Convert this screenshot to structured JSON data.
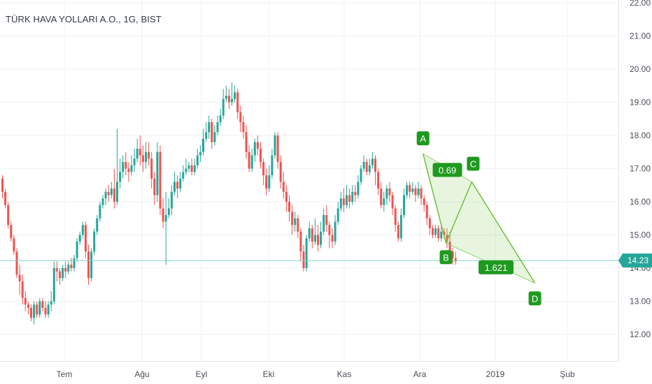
{
  "header": {
    "title": "TÜRK HAVA YOLLARI A.O., 1G, BIST"
  },
  "colors": {
    "up": "#26a69a",
    "down": "#ef5350",
    "grid": "#eef0f3",
    "axis_text": "#4a4f5a",
    "harmonic_line": "#6fbf3a",
    "harmonic_fill": "rgba(120,200,80,0.18)",
    "label_bg": "#1e9a1e",
    "price_line": "#7fd0c8",
    "price_tag": "#26a69a"
  },
  "chart_data": {
    "type": "candlestick",
    "title": "TÜRK HAVA YOLLARI A.O., 1G, BIST",
    "ylim": [
      11.5,
      22.2
    ],
    "y_ticks": [
      "22.00",
      "21.00",
      "20.00",
      "19.00",
      "18.00",
      "17.00",
      "16.00",
      "15.00",
      "14.00",
      "13.00",
      "12.00"
    ],
    "x_ticks": [
      "Tem",
      "Ağu",
      "Eyl",
      "Eki",
      "Kas",
      "Ara",
      "2019",
      "Şub"
    ],
    "last_price": "14.23",
    "candles": [
      [
        16.7,
        16.3,
        16.8,
        16.1
      ],
      [
        16.3,
        15.9,
        16.4,
        15.8
      ],
      [
        15.9,
        15.3,
        16.0,
        15.2
      ],
      [
        15.3,
        14.9,
        15.4,
        14.8
      ],
      [
        14.9,
        14.5,
        15.0,
        14.4
      ],
      [
        14.5,
        13.8,
        14.6,
        13.7
      ],
      [
        13.8,
        13.6,
        14.1,
        13.2
      ],
      [
        13.6,
        13.1,
        13.8,
        12.9
      ],
      [
        13.1,
        12.9,
        13.3,
        12.7
      ],
      [
        12.9,
        12.8,
        13.0,
        12.6
      ],
      [
        12.8,
        12.5,
        12.9,
        12.4
      ],
      [
        12.5,
        12.9,
        13.0,
        12.3
      ],
      [
        12.9,
        12.6,
        13.0,
        12.5
      ],
      [
        12.6,
        13.0,
        13.1,
        12.5
      ],
      [
        13.0,
        12.8,
        13.1,
        12.7
      ],
      [
        12.8,
        12.6,
        13.0,
        12.5
      ],
      [
        12.6,
        12.9,
        13.0,
        12.5
      ],
      [
        12.9,
        13.0,
        13.3,
        12.7
      ],
      [
        13.0,
        14.0,
        14.2,
        12.9
      ],
      [
        14.0,
        13.9,
        14.2,
        13.6
      ],
      [
        13.9,
        13.7,
        14.0,
        13.5
      ],
      [
        13.7,
        14.0,
        14.1,
        13.6
      ],
      [
        14.0,
        13.9,
        14.2,
        13.7
      ],
      [
        13.9,
        14.1,
        14.2,
        13.8
      ],
      [
        14.1,
        14.0,
        14.3,
        13.9
      ],
      [
        14.0,
        14.3,
        14.4,
        13.9
      ],
      [
        14.3,
        14.8,
        14.9,
        14.2
      ],
      [
        14.8,
        15.0,
        15.1,
        14.7
      ],
      [
        15.0,
        15.3,
        15.4,
        14.9
      ],
      [
        15.3,
        14.5,
        15.4,
        14.3
      ],
      [
        14.5,
        13.7,
        14.7,
        13.5
      ],
      [
        13.7,
        14.5,
        14.6,
        13.6
      ],
      [
        14.5,
        15.1,
        15.2,
        14.4
      ],
      [
        15.1,
        15.5,
        15.6,
        15.0
      ],
      [
        15.5,
        15.9,
        16.0,
        15.4
      ],
      [
        15.9,
        16.1,
        16.2,
        15.8
      ],
      [
        16.1,
        16.3,
        16.4,
        15.9
      ],
      [
        16.3,
        16.2,
        16.5,
        16.0
      ],
      [
        16.2,
        16.4,
        16.6,
        16.1
      ],
      [
        16.4,
        16.0,
        17.0,
        15.8
      ],
      [
        16.0,
        16.6,
        18.2,
        15.9
      ],
      [
        16.6,
        16.9,
        17.3,
        16.4
      ],
      [
        16.9,
        17.2,
        17.4,
        16.7
      ],
      [
        17.2,
        17.0,
        17.5,
        16.8
      ],
      [
        17.0,
        16.9,
        17.2,
        16.6
      ],
      [
        16.9,
        17.1,
        17.4,
        16.8
      ],
      [
        17.1,
        17.3,
        17.6,
        16.9
      ],
      [
        17.3,
        17.6,
        17.9,
        17.2
      ],
      [
        17.6,
        17.4,
        18.0,
        17.1
      ],
      [
        17.4,
        17.2,
        17.7,
        16.9
      ],
      [
        17.2,
        17.5,
        17.8,
        17.0
      ],
      [
        17.5,
        17.3,
        17.8,
        17.1
      ],
      [
        17.3,
        16.7,
        17.5,
        16.4
      ],
      [
        16.7,
        16.2,
        16.9,
        15.9
      ],
      [
        16.2,
        17.5,
        17.8,
        16.0
      ],
      [
        17.5,
        15.8,
        17.7,
        15.6
      ],
      [
        15.8,
        15.4,
        16.1,
        15.2
      ],
      [
        15.4,
        15.6,
        16.3,
        14.1
      ],
      [
        15.6,
        15.8,
        16.1,
        15.5
      ],
      [
        15.8,
        16.3,
        16.5,
        15.6
      ],
      [
        16.3,
        16.6,
        16.9,
        16.2
      ],
      [
        16.6,
        16.4,
        16.8,
        16.1
      ],
      [
        16.4,
        16.7,
        16.9,
        16.3
      ],
      [
        16.7,
        16.9,
        17.1,
        16.6
      ],
      [
        16.9,
        17.0,
        17.3,
        16.8
      ],
      [
        17.0,
        17.1,
        17.2,
        16.9
      ],
      [
        17.1,
        16.9,
        17.3,
        16.8
      ],
      [
        16.9,
        17.1,
        17.3,
        16.8
      ],
      [
        17.1,
        17.4,
        17.6,
        17.0
      ],
      [
        17.4,
        17.5,
        17.7,
        17.2
      ],
      [
        17.5,
        17.9,
        18.2,
        17.4
      ],
      [
        17.9,
        18.1,
        18.4,
        17.8
      ],
      [
        18.1,
        18.4,
        18.6,
        17.9
      ],
      [
        18.4,
        17.8,
        18.5,
        17.6
      ],
      [
        17.8,
        18.1,
        18.3,
        17.7
      ],
      [
        18.1,
        18.4,
        18.6,
        18.0
      ],
      [
        18.4,
        18.6,
        18.8,
        18.3
      ],
      [
        18.6,
        19.1,
        19.4,
        18.5
      ],
      [
        19.1,
        19.2,
        19.5,
        19.0
      ],
      [
        19.2,
        19.0,
        19.4,
        18.8
      ],
      [
        19.0,
        19.1,
        19.6,
        18.9
      ],
      [
        19.1,
        19.3,
        19.5,
        19.0
      ],
      [
        19.3,
        18.7,
        19.4,
        18.5
      ],
      [
        18.7,
        18.4,
        18.9,
        18.1
      ],
      [
        18.4,
        18.1,
        18.6,
        17.9
      ],
      [
        18.1,
        17.5,
        18.3,
        17.3
      ],
      [
        17.5,
        17.0,
        17.7,
        16.9
      ],
      [
        17.0,
        17.4,
        17.6,
        16.9
      ],
      [
        17.4,
        17.8,
        17.9,
        17.2
      ],
      [
        17.8,
        17.6,
        18.0,
        17.4
      ],
      [
        17.6,
        17.2,
        17.8,
        17.0
      ],
      [
        17.2,
        16.8,
        17.3,
        16.5
      ],
      [
        16.8,
        16.4,
        17.0,
        16.2
      ],
      [
        16.4,
        16.8,
        17.1,
        16.3
      ],
      [
        16.8,
        17.4,
        17.6,
        16.7
      ],
      [
        17.4,
        18.0,
        18.1,
        17.3
      ],
      [
        18.0,
        17.2,
        18.1,
        17.0
      ],
      [
        17.2,
        16.6,
        17.4,
        16.4
      ],
      [
        16.6,
        16.3,
        16.9,
        16.1
      ],
      [
        16.3,
        16.0,
        16.5,
        15.7
      ],
      [
        16.0,
        15.7,
        16.2,
        15.4
      ],
      [
        15.7,
        15.3,
        15.9,
        15.0
      ],
      [
        15.3,
        15.5,
        15.7,
        15.1
      ],
      [
        15.5,
        15.1,
        15.6,
        14.9
      ],
      [
        15.1,
        14.5,
        15.2,
        14.2
      ],
      [
        14.5,
        14.0,
        14.7,
        13.9
      ],
      [
        14.0,
        14.9,
        15.0,
        13.9
      ],
      [
        14.9,
        15.2,
        15.4,
        14.8
      ],
      [
        15.2,
        14.8,
        15.3,
        14.6
      ],
      [
        14.8,
        15.0,
        15.5,
        14.7
      ],
      [
        15.0,
        14.7,
        15.3,
        14.5
      ],
      [
        14.7,
        15.1,
        15.4,
        14.6
      ],
      [
        15.1,
        15.6,
        15.8,
        15.0
      ],
      [
        15.6,
        15.3,
        15.9,
        15.1
      ],
      [
        15.3,
        15.0,
        15.4,
        14.6
      ],
      [
        15.0,
        14.8,
        15.2,
        14.6
      ],
      [
        14.8,
        15.4,
        15.6,
        14.7
      ],
      [
        15.4,
        15.8,
        16.0,
        15.3
      ],
      [
        15.8,
        16.1,
        16.3,
        15.7
      ],
      [
        16.1,
        15.9,
        16.4,
        15.7
      ],
      [
        15.9,
        16.2,
        16.5,
        15.8
      ],
      [
        16.2,
        16.0,
        16.4,
        15.8
      ],
      [
        16.0,
        16.3,
        16.5,
        15.9
      ],
      [
        16.3,
        16.2,
        16.5,
        16.0
      ],
      [
        16.2,
        16.6,
        16.8,
        16.1
      ],
      [
        16.6,
        17.0,
        17.1,
        16.5
      ],
      [
        17.0,
        17.2,
        17.4,
        16.9
      ],
      [
        17.2,
        16.9,
        17.3,
        16.8
      ],
      [
        16.9,
        17.1,
        17.3,
        16.8
      ],
      [
        17.1,
        17.3,
        17.5,
        17.0
      ],
      [
        17.3,
        16.9,
        17.4,
        16.5
      ],
      [
        16.9,
        16.4,
        17.0,
        16.2
      ],
      [
        16.4,
        15.9,
        16.6,
        15.8
      ],
      [
        15.9,
        16.1,
        16.3,
        15.7
      ],
      [
        16.1,
        16.4,
        16.5,
        15.9
      ],
      [
        16.4,
        16.2,
        16.6,
        16.0
      ],
      [
        16.2,
        15.8,
        16.3,
        15.6
      ],
      [
        15.8,
        15.3,
        15.9,
        15.1
      ],
      [
        15.3,
        14.9,
        15.4,
        14.8
      ],
      [
        14.9,
        15.6,
        15.8,
        14.8
      ],
      [
        15.6,
        16.2,
        16.4,
        15.5
      ],
      [
        16.2,
        16.5,
        16.6,
        16.1
      ],
      [
        16.5,
        16.3,
        16.6,
        16.1
      ],
      [
        16.3,
        16.4,
        16.6,
        16.2
      ],
      [
        16.4,
        16.2,
        16.5,
        16.0
      ],
      [
        16.2,
        16.4,
        16.6,
        16.1
      ],
      [
        16.4,
        16.1,
        16.5,
        15.9
      ],
      [
        16.1,
        15.9,
        16.2,
        15.7
      ],
      [
        15.9,
        15.5,
        16.0,
        15.3
      ],
      [
        15.5,
        15.2,
        15.6,
        15.0
      ],
      [
        15.2,
        15.0,
        15.3,
        14.9
      ],
      [
        15.0,
        15.2,
        15.3,
        14.9
      ],
      [
        15.2,
        14.9,
        15.3,
        14.8
      ],
      [
        14.9,
        15.1,
        15.3,
        14.8
      ],
      [
        15.1,
        15.0,
        15.2,
        14.9
      ],
      [
        15.0,
        14.8,
        15.2,
        14.6
      ],
      [
        14.8,
        14.5,
        15.1,
        14.3
      ],
      [
        14.5,
        14.3,
        14.6,
        14.1
      ],
      [
        14.3,
        14.2,
        14.5,
        14.1
      ]
    ],
    "harmonic": {
      "points": [
        {
          "label": "A",
          "date_index": 147,
          "price": 17.45
        },
        {
          "label": "B",
          "date_index": 155,
          "price": 14.75
        },
        {
          "label": "C",
          "date_index": 164,
          "price": 16.6
        },
        {
          "label": "D",
          "date_index": 186,
          "price": 13.55
        }
      ],
      "ratios": [
        {
          "label": "0.69",
          "between": "A-C"
        },
        {
          "label": "1.621",
          "between": "B-D"
        }
      ]
    }
  }
}
